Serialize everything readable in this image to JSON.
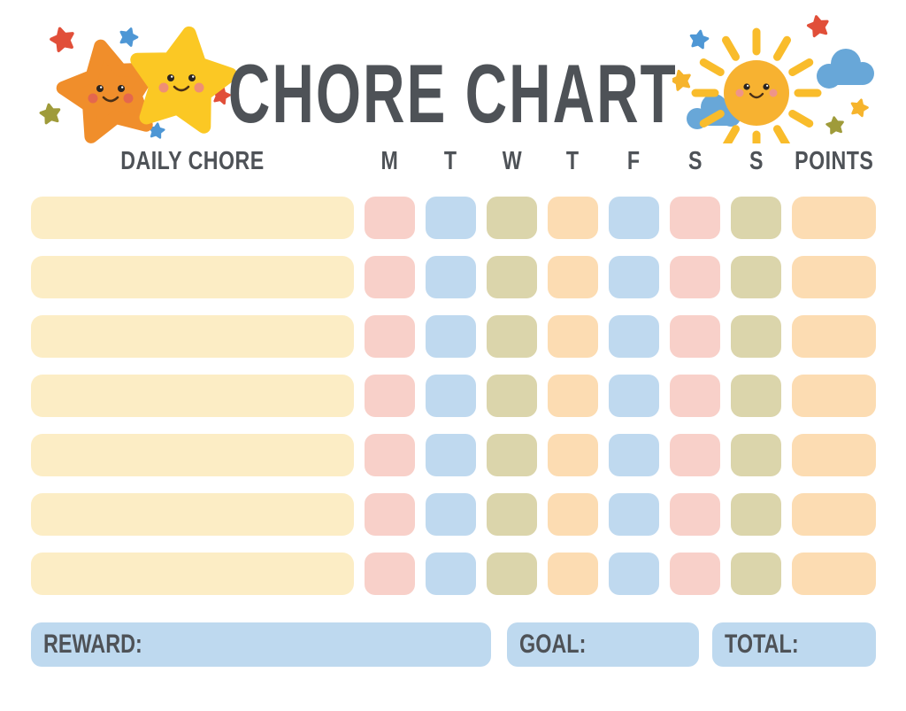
{
  "page": {
    "title": "CHORE CHART"
  },
  "table": {
    "chore_header": "DAILY CHORE",
    "day_headers": [
      "M",
      "T",
      "W",
      "T",
      "F",
      "S",
      "S"
    ],
    "points_header": "POINTS",
    "row_count": 7,
    "chores": [
      "",
      "",
      "",
      "",
      "",
      "",
      ""
    ],
    "day_cell_colors": [
      "#f8d0c9",
      "#bfd9ef",
      "#dbd5ab",
      "#fcdcb2",
      "#bfd9ef",
      "#f8d0c9",
      "#dbd5ab"
    ],
    "chore_cell_color": "#fcedc5",
    "points_cell_color": "#fcdcb2"
  },
  "footer": {
    "reward_label": "REWARD:",
    "goal_label": "GOAL:",
    "total_label": "TOTAL:"
  },
  "decorations": {
    "left": "two-smiling-stars-with-sparkle-stars",
    "right": "smiling-sun-with-clouds-and-sparkle-stars"
  },
  "palette": {
    "ink": "#4e5257",
    "cream": "#fcedc5",
    "footerblue": "#bed9ef",
    "starorange": "#f08e2b",
    "staryellow": "#fbc824",
    "cheekorange": "#e4674d",
    "cheekyellow": "#ef8f74",
    "cheeksun": "#ef9489",
    "red": "#e14f39",
    "smallblue": "#4e97d5",
    "olive": "#9f9b3a",
    "smallyellow": "#f6b42c",
    "cloud": "#68a7d8",
    "sun": "#f7b231",
    "ray": "#f9bc2b",
    "eye": "#2b2420",
    "smile": "#4a2f16"
  }
}
